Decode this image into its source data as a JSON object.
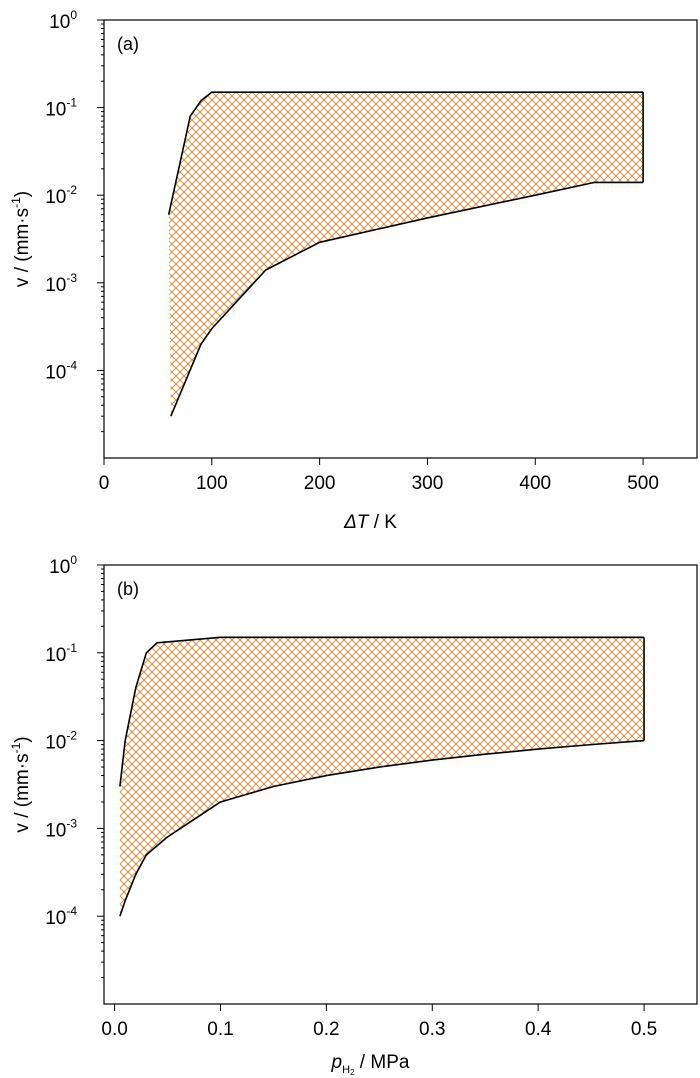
{
  "hatch_color": "#d9822b",
  "chart_data": [
    {
      "type": "area",
      "panel_label": "(a)",
      "xlabel_sym": "ΔT",
      "xlabel_unit": " / K",
      "ylabel": "v / (mm·s-1)",
      "x_scale": "linear",
      "y_scale": "log",
      "xlim": [
        0,
        550
      ],
      "ylim": [
        1e-05,
        1
      ],
      "x_ticks": [
        0,
        100,
        200,
        300,
        400,
        500
      ],
      "x_tick_labels": [
        "0",
        "100",
        "200",
        "300",
        "400",
        "500"
      ],
      "y_ticks": [
        1,
        0.1,
        0.01,
        0.001,
        0.0001
      ],
      "y_tick_labels": [
        "10",
        "10",
        "10",
        "10",
        "10"
      ],
      "y_tick_exps": [
        "0",
        "-1",
        "-2",
        "-3",
        "-4"
      ],
      "grid": false,
      "series": [
        {
          "role": "upper",
          "x": [
            60,
            80,
            90,
            100,
            500
          ],
          "y": [
            0.006,
            0.08,
            0.12,
            0.15,
            0.15
          ]
        },
        {
          "role": "lower",
          "x": [
            62,
            90,
            100,
            150,
            200,
            300,
            400,
            455,
            500
          ],
          "y": [
            3e-05,
            0.0002,
            0.0003,
            0.0014,
            0.0029,
            0.0055,
            0.01,
            0.014,
            0.014
          ]
        }
      ]
    },
    {
      "type": "area",
      "panel_label": "(b)",
      "xlabel_sym": "p",
      "xlabel_sub": "H",
      "xlabel_sub2": "2",
      "xlabel_unit": " / MPa",
      "ylabel": "v / (mm·s-1)",
      "x_scale": "linear",
      "y_scale": "log",
      "xlim": [
        -0.01,
        0.55
      ],
      "ylim": [
        1e-05,
        1
      ],
      "x_ticks": [
        0,
        0.1,
        0.2,
        0.3,
        0.4,
        0.5
      ],
      "x_tick_labels": [
        "0.0",
        "0.1",
        "0.2",
        "0.3",
        "0.4",
        "0.5"
      ],
      "y_ticks": [
        1,
        0.1,
        0.01,
        0.001,
        0.0001
      ],
      "y_tick_labels": [
        "10",
        "10",
        "10",
        "10",
        "10"
      ],
      "y_tick_exps": [
        "0",
        "-1",
        "-2",
        "-3",
        "-4"
      ],
      "grid": false,
      "series": [
        {
          "role": "upper",
          "x": [
            0.005,
            0.01,
            0.02,
            0.03,
            0.04,
            0.1,
            0.5
          ],
          "y": [
            0.003,
            0.01,
            0.04,
            0.1,
            0.13,
            0.15,
            0.15
          ]
        },
        {
          "role": "lower",
          "x": [
            0.005,
            0.01,
            0.02,
            0.03,
            0.05,
            0.1,
            0.15,
            0.2,
            0.25,
            0.3,
            0.35,
            0.4,
            0.45,
            0.5
          ],
          "y": [
            0.0001,
            0.00015,
            0.0003,
            0.0005,
            0.0008,
            0.002,
            0.003,
            0.004,
            0.005,
            0.006,
            0.007,
            0.008,
            0.009,
            0.01
          ]
        }
      ]
    }
  ]
}
